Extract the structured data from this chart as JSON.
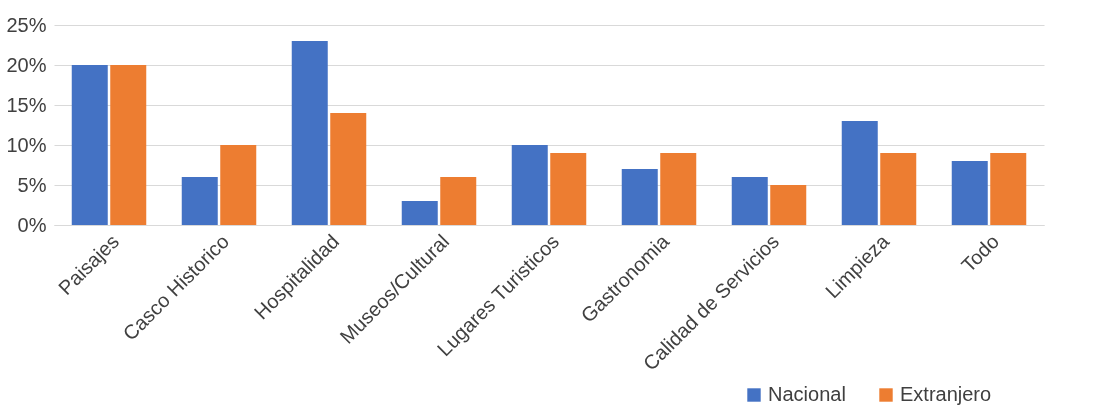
{
  "chart_data": {
    "type": "bar",
    "categories": [
      "Paisajes",
      "Casco Historico",
      "Hospitalidad",
      "Museos/Cultural",
      "Lugares Turisticos",
      "Gastronomia",
      "Calidad de Servicios",
      "Limpieza",
      "Todo"
    ],
    "series": [
      {
        "name": "Nacional",
        "color": "#4472c4",
        "values": [
          20,
          6,
          23,
          3,
          10,
          7,
          6,
          13,
          8
        ]
      },
      {
        "name": "Extranjero",
        "color": "#ed7d31",
        "values": [
          20,
          10,
          14,
          6,
          9,
          9,
          5,
          9,
          9
        ]
      }
    ],
    "ylim": [
      0,
      25
    ],
    "yticks": [
      {
        "value": 0,
        "label": "0%"
      },
      {
        "value": 5,
        "label": "5%"
      },
      {
        "value": 10,
        "label": "10%"
      },
      {
        "value": 15,
        "label": "15%"
      },
      {
        "value": 20,
        "label": "20%"
      },
      {
        "value": 25,
        "label": "25%"
      }
    ],
    "grid": "y",
    "legend": "bottom right"
  }
}
